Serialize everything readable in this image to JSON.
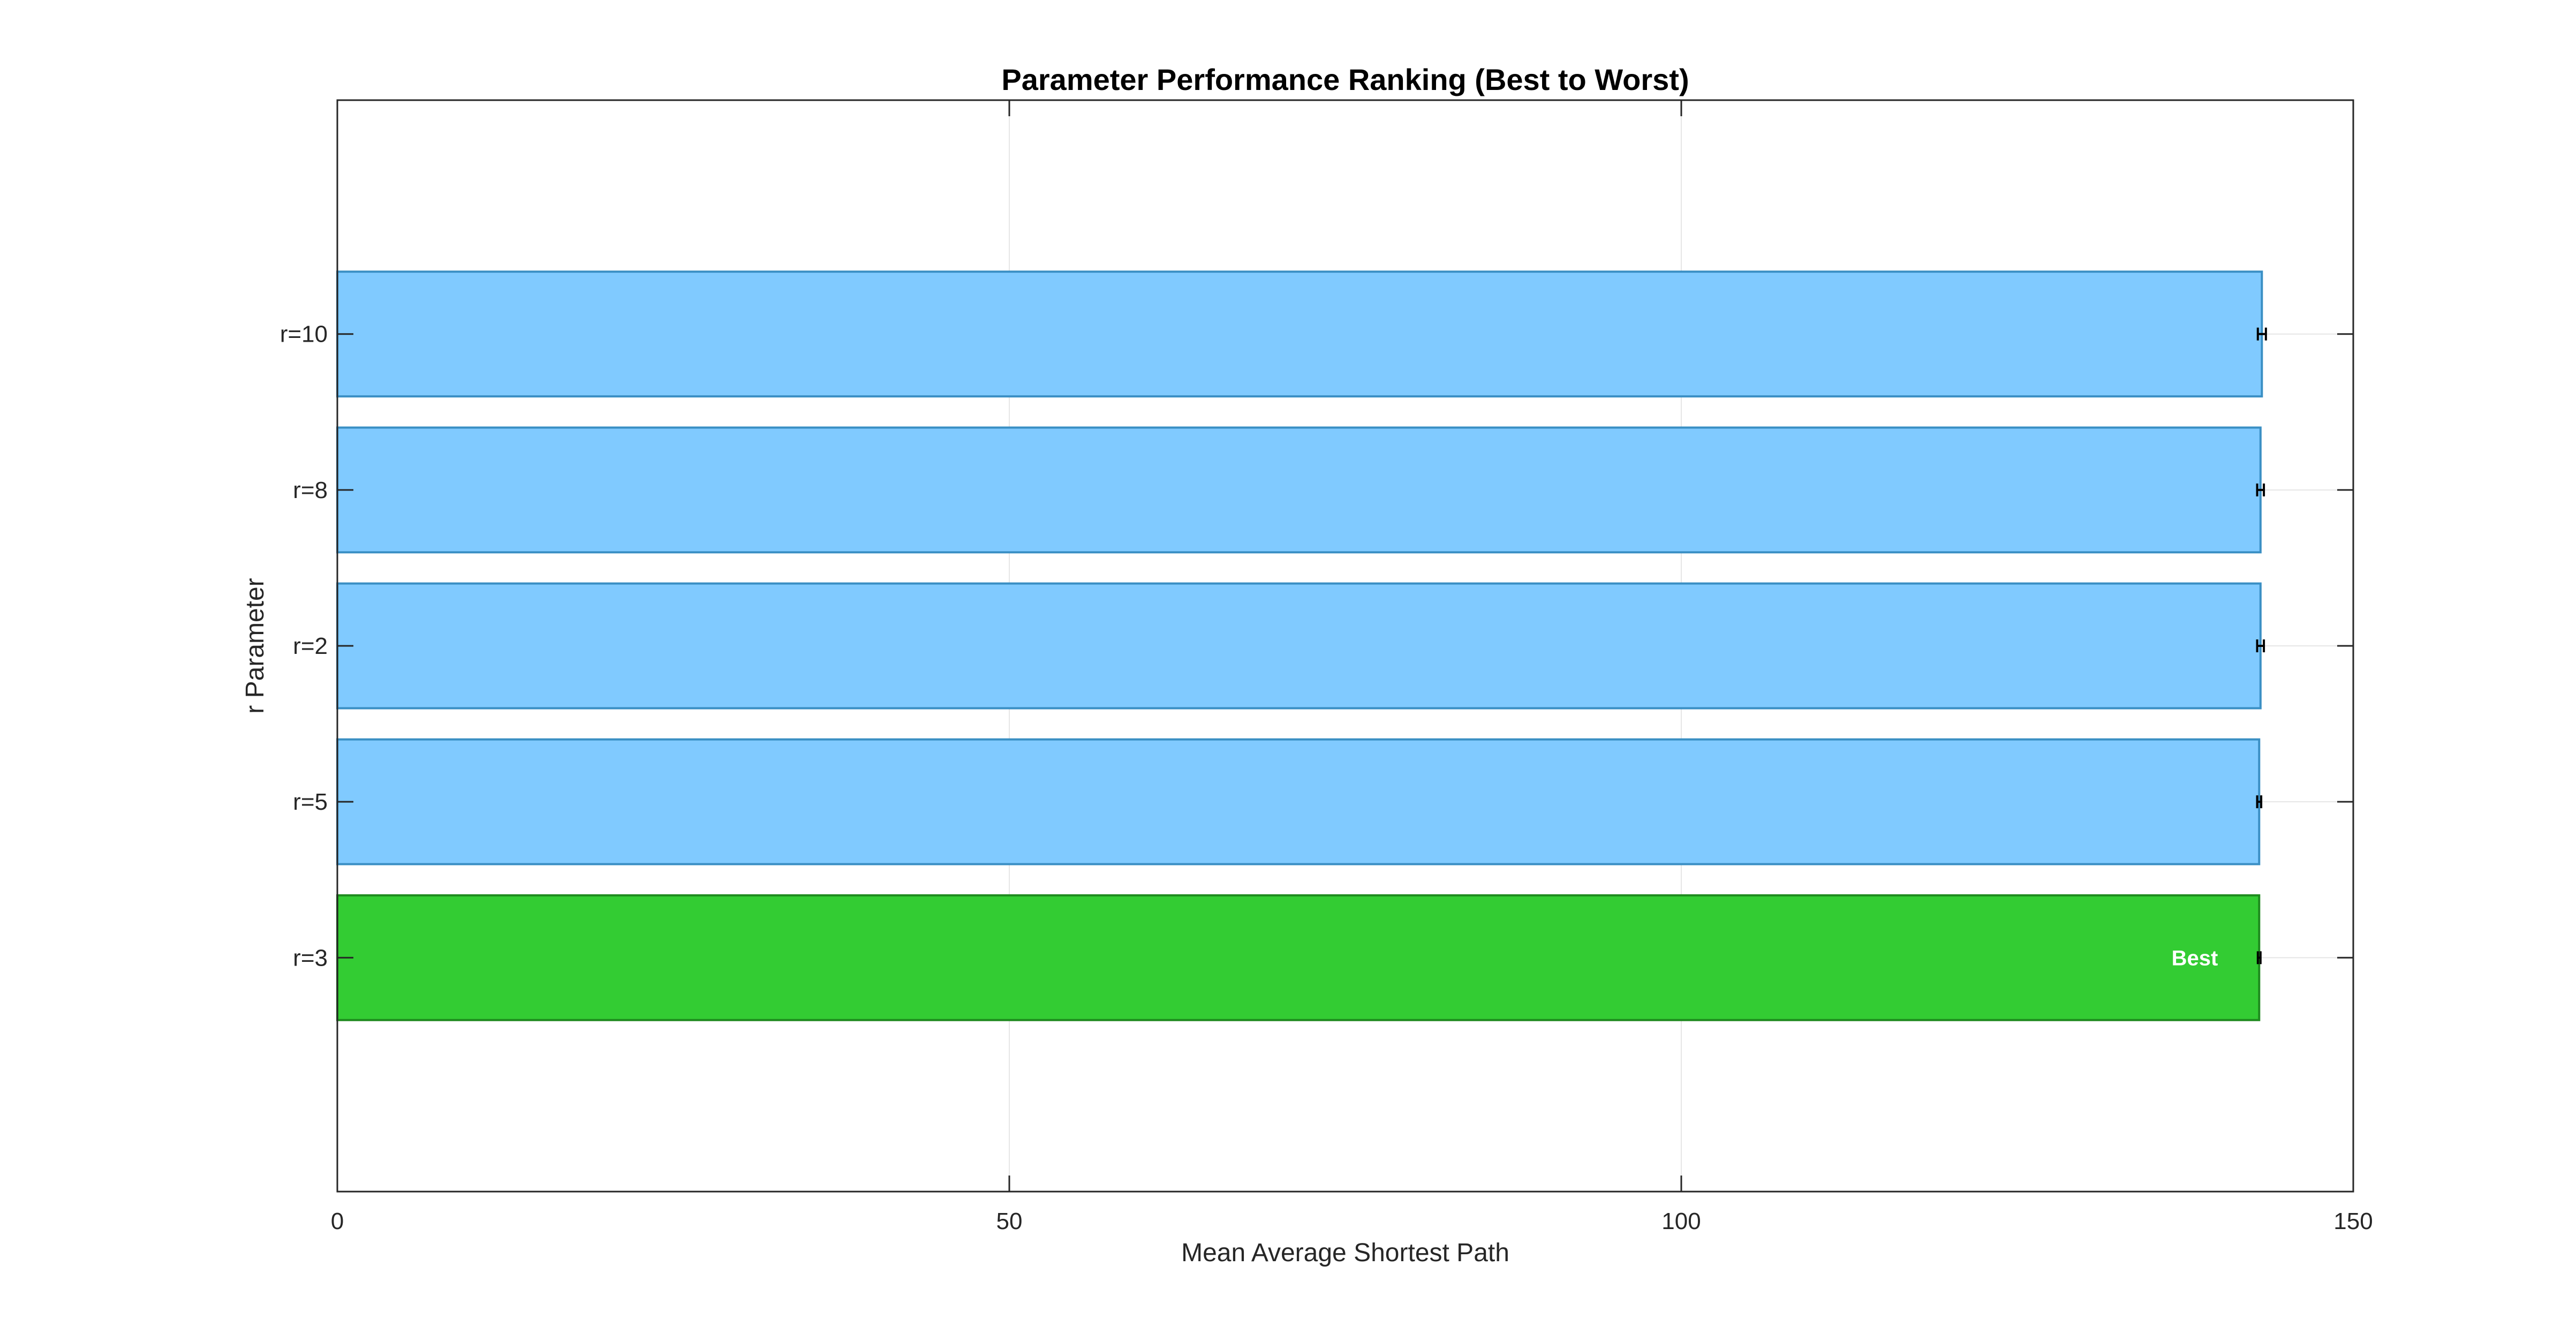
{
  "chart_data": {
    "type": "bar",
    "orientation": "horizontal",
    "title": "Parameter Performance Ranking (Best to Worst)",
    "xlabel": "Mean Average Shortest Path",
    "ylabel": "r Parameter",
    "xlim": [
      0,
      150
    ],
    "xticks": [
      "0",
      "50",
      "100",
      "150"
    ],
    "grid": true,
    "categories": [
      "r=3",
      "r=5",
      "r=2",
      "r=8",
      "r=10"
    ],
    "values": [
      143.0,
      143.0,
      143.1,
      143.1,
      143.2
    ],
    "errors": [
      0.1,
      0.15,
      0.25,
      0.25,
      0.3
    ],
    "highlight_index": 0,
    "annotation": "Best",
    "colors": {
      "bar": "#80CAFF",
      "bar_edge": "#3A8FC4",
      "best": "#33CC33",
      "best_edge": "#1E8A1E",
      "error": "#000000"
    }
  }
}
